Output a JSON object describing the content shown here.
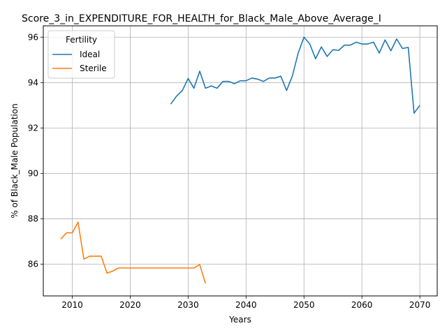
{
  "chart_data": {
    "type": "line",
    "title": "Score_3_in_EXPENDITURE_FOR_HEALTH_for_Black_Male_Above_Average_I",
    "xlabel": "Years",
    "ylabel": "% of Black_Male Population",
    "xlim": [
      2005,
      2073
    ],
    "ylim": [
      84.6,
      96.5
    ],
    "xticks": [
      2010,
      2020,
      2030,
      2040,
      2050,
      2060,
      2070
    ],
    "yticks": [
      86,
      88,
      90,
      92,
      94,
      96
    ],
    "grid": true,
    "legend": {
      "title": "Fertility",
      "placement": "upper-left"
    },
    "series": [
      {
        "name": "Ideal",
        "color": "#1f77b4",
        "x": [
          2027,
          2028,
          2029,
          2030,
          2031,
          2032,
          2033,
          2034,
          2035,
          2036,
          2037,
          2038,
          2039,
          2040,
          2041,
          2042,
          2043,
          2044,
          2045,
          2046,
          2047,
          2048,
          2049,
          2050,
          2051,
          2052,
          2053,
          2054,
          2055,
          2056,
          2057,
          2058,
          2059,
          2060,
          2061,
          2062,
          2063,
          2064,
          2065,
          2066,
          2067,
          2068,
          2069,
          2070
        ],
        "y": [
          93.05,
          93.4,
          93.65,
          94.18,
          93.75,
          94.5,
          93.75,
          93.85,
          93.75,
          94.05,
          94.05,
          93.95,
          94.08,
          94.08,
          94.2,
          94.15,
          94.05,
          94.2,
          94.2,
          94.28,
          93.65,
          94.3,
          95.3,
          96.0,
          95.7,
          95.05,
          95.57,
          95.15,
          95.45,
          95.42,
          95.65,
          95.65,
          95.78,
          95.7,
          95.7,
          95.78,
          95.3,
          95.88,
          95.4,
          95.92,
          95.5,
          95.55,
          92.65,
          93.0
        ]
      },
      {
        "name": "Sterile",
        "color": "#ff7f0e",
        "x": [
          2008,
          2009,
          2010,
          2011,
          2012,
          2013,
          2014,
          2015,
          2016,
          2017,
          2018,
          2019,
          2020,
          2021,
          2022,
          2023,
          2024,
          2025,
          2026,
          2027,
          2028,
          2029,
          2030,
          2031,
          2032,
          2033
        ],
        "y": [
          87.1,
          87.38,
          87.38,
          87.85,
          86.22,
          86.35,
          86.35,
          86.35,
          85.6,
          85.7,
          85.83,
          85.83,
          85.83,
          85.83,
          85.83,
          85.83,
          85.83,
          85.83,
          85.83,
          85.83,
          85.83,
          85.83,
          85.83,
          85.83,
          85.98,
          85.15
        ]
      }
    ]
  }
}
